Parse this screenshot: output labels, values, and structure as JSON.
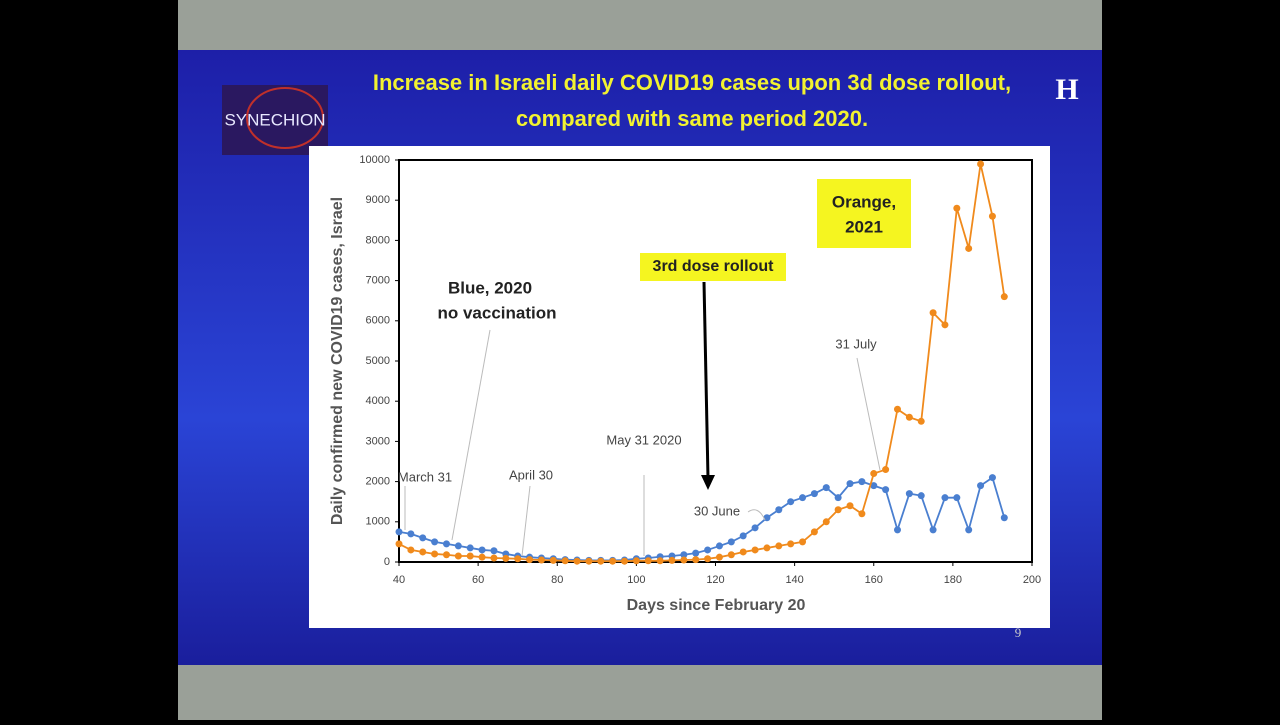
{
  "logo": "SYNECHION",
  "brand": "H",
  "page_number": "9",
  "chart_data": {
    "type": "line",
    "title_lines": [
      "Increase in Israeli daily COVID19 cases upon 3d dose rollout,",
      "compared with same period 2020."
    ],
    "x_label": "Days since February 20",
    "y_label": "Daily confirmed new COVID19 cases, Israel",
    "xlim": [
      40,
      200
    ],
    "xticks": [
      40,
      60,
      80,
      100,
      120,
      140,
      160,
      180,
      200
    ],
    "ylim": [
      0,
      10000
    ],
    "yticks": [
      0,
      1000,
      2000,
      3000,
      4000,
      5000,
      6000,
      7000,
      8000,
      9000,
      10000
    ],
    "x": [
      40,
      43,
      46,
      49,
      52,
      55,
      58,
      61,
      64,
      67,
      70,
      73,
      76,
      79,
      82,
      85,
      88,
      91,
      94,
      97,
      100,
      103,
      106,
      109,
      112,
      115,
      118,
      121,
      124,
      127,
      130,
      133,
      136,
      139,
      142,
      145,
      148,
      151,
      154,
      157,
      160,
      163,
      166,
      169,
      172,
      175,
      178,
      181,
      184,
      187,
      190,
      193
    ],
    "series": [
      {
        "name": "Blue, 2020",
        "color": "#4a7fd0",
        "values": [
          750,
          700,
          600,
          500,
          450,
          400,
          350,
          300,
          280,
          200,
          150,
          120,
          100,
          80,
          60,
          50,
          40,
          40,
          40,
          50,
          80,
          100,
          130,
          150,
          180,
          220,
          300,
          400,
          500,
          650,
          850,
          1100,
          1300,
          1500,
          1600,
          1700,
          1850,
          1600,
          1950,
          2000,
          1900,
          1800,
          800,
          1700,
          1650,
          800,
          1600,
          1600,
          800,
          1900,
          2100,
          1100
        ]
      },
      {
        "name": "Orange, 2021",
        "color": "#f08a1c",
        "values": [
          450,
          300,
          250,
          200,
          180,
          150,
          150,
          120,
          100,
          90,
          80,
          60,
          50,
          40,
          30,
          20,
          20,
          20,
          20,
          20,
          30,
          30,
          30,
          40,
          50,
          60,
          80,
          120,
          180,
          250,
          300,
          350,
          400,
          450,
          500,
          750,
          1000,
          1300,
          1400,
          1200,
          2200,
          2300,
          3800,
          3600,
          3500,
          6200,
          5900,
          8800,
          7800,
          9900,
          8600,
          6600
        ]
      }
    ],
    "annotations": {
      "blue_lines": [
        "Blue, 2020",
        "no vaccination"
      ],
      "orange_lines": [
        "Orange,",
        "2021"
      ],
      "rollout": "3rd dose rollout",
      "march": "March 31",
      "april": "April 30",
      "may": "May 31 2020",
      "june": "30 June",
      "july": "31 July"
    }
  }
}
